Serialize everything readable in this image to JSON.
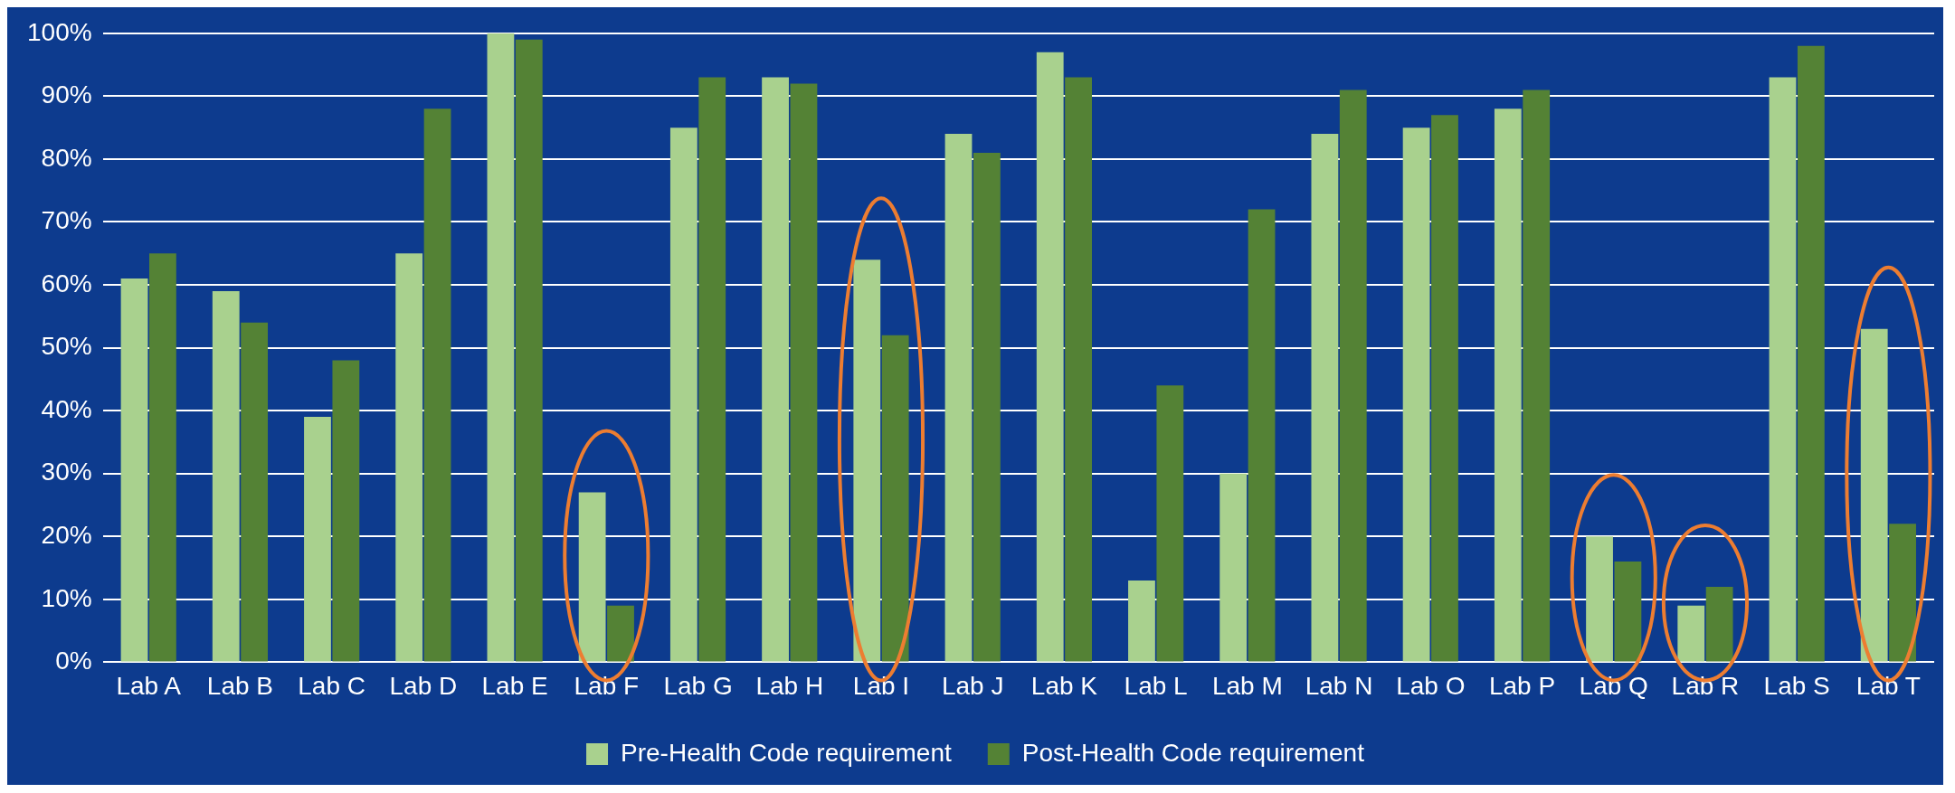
{
  "chart_data": {
    "type": "bar",
    "categories": [
      "Lab A",
      "Lab B",
      "Lab C",
      "Lab D",
      "Lab E",
      "Lab F",
      "Lab G",
      "Lab H",
      "Lab I",
      "Lab J",
      "Lab K",
      "Lab L",
      "Lab M",
      "Lab N",
      "Lab O",
      "Lab P",
      "Lab Q",
      "Lab R",
      "Lab S",
      "Lab T"
    ],
    "series": [
      {
        "name": "Pre-Health Code requirement",
        "color": "#a9d18e",
        "values": [
          61,
          59,
          39,
          65,
          100,
          27,
          85,
          93,
          64,
          84,
          97,
          13,
          30,
          84,
          85,
          88,
          20,
          9,
          93,
          53
        ]
      },
      {
        "name": "Post-Health Code requirement",
        "color": "#548235",
        "values": [
          65,
          54,
          48,
          88,
          99,
          9,
          93,
          92,
          52,
          81,
          93,
          44,
          72,
          91,
          87,
          91,
          16,
          12,
          98,
          22
        ]
      }
    ],
    "ylim": [
      0,
      100
    ],
    "yticks": [
      {
        "value": 0,
        "label": "0%"
      },
      {
        "value": 10,
        "label": "10%"
      },
      {
        "value": 20,
        "label": "20%"
      },
      {
        "value": 30,
        "label": "30%"
      },
      {
        "value": 40,
        "label": "40%"
      },
      {
        "value": 50,
        "label": "50%"
      },
      {
        "value": 60,
        "label": "60%"
      },
      {
        "value": 70,
        "label": "70%"
      },
      {
        "value": 80,
        "label": "80%"
      },
      {
        "value": 90,
        "label": "90%"
      },
      {
        "value": 100,
        "label": "100%"
      }
    ],
    "grid": "y",
    "legend": "bottom"
  }
}
